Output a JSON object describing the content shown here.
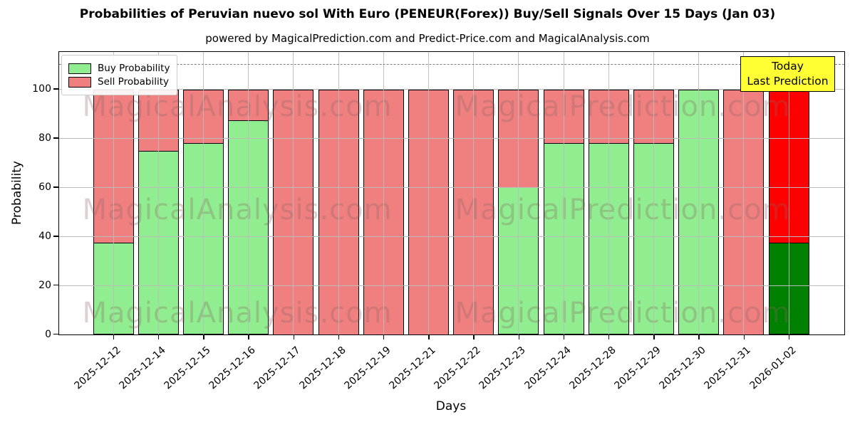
{
  "chart_data": {
    "type": "bar",
    "stacked": true,
    "title": "Probabilities of Peruvian nuevo sol With Euro (PENEUR(Forex)) Buy/Sell Signals Over 15 Days (Jan 03)",
    "subtitle": "powered by MagicalPrediction.com and Predict-Price.com and MagicalAnalysis.com",
    "xlabel": "Days",
    "ylabel": "Probability",
    "ylim": [
      0,
      115
    ],
    "yticks": [
      0,
      20,
      40,
      60,
      80,
      100
    ],
    "dashed_line_y": 110,
    "grid": true,
    "legend_position": "upper-left",
    "categories": [
      "2025-12-12",
      "2025-12-14",
      "2025-12-15",
      "2025-12-16",
      "2025-12-17",
      "2025-12-18",
      "2025-12-19",
      "2025-12-21",
      "2025-12-22",
      "2025-12-23",
      "2025-12-24",
      "2025-12-28",
      "2025-12-29",
      "2025-12-30",
      "2025-12-31",
      "2026-01-02"
    ],
    "series": [
      {
        "name": "Buy Probability",
        "color": "#90EE90",
        "values": [
          37.5,
          75,
          78,
          87.5,
          0,
          0,
          0,
          0,
          0,
          60,
          78,
          78,
          78,
          100,
          0,
          37.5
        ]
      },
      {
        "name": "Sell Probability",
        "color": "#F08080",
        "values": [
          62.5,
          25,
          22,
          12.5,
          100,
          100,
          100,
          100,
          100,
          40,
          22,
          22,
          22,
          0,
          100,
          62.5
        ]
      }
    ],
    "today_bar": {
      "index": 15,
      "buy_color": "#008000",
      "sell_color": "#FF0000"
    },
    "bar_edge_color": "#000000",
    "grid_color": "#bbbbbb",
    "dashed_line_color": "#7f7f7f"
  },
  "annotation_box": {
    "lines": [
      "Today",
      "Last Prediction"
    ],
    "bg_color": "#ffff33"
  },
  "watermarks": {
    "left": "MagicalAnalysis.com",
    "right": "MagicalPrediction.com"
  }
}
